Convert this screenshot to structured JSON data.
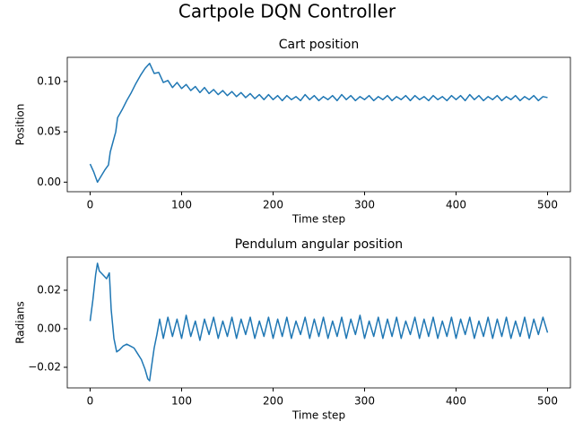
{
  "title": "Cartpole DQN Controller",
  "chart_data": [
    {
      "type": "line",
      "title": "Cart position",
      "xlabel": "Time step",
      "ylabel": "Position",
      "xlim": [
        -25,
        525
      ],
      "xticks": [
        0,
        100,
        200,
        300,
        400,
        500
      ],
      "ylim": [
        -0.0095,
        0.124
      ],
      "yticks": [
        {
          "value": 0,
          "label": "0.00"
        },
        {
          "value": 0.05,
          "label": "0.05"
        },
        {
          "value": 0.1,
          "label": "0.10"
        }
      ],
      "x": [
        0,
        4,
        8,
        12,
        16,
        20,
        22,
        25,
        28,
        30,
        35,
        40,
        45,
        50,
        55,
        60,
        65,
        70,
        75,
        80,
        85,
        90,
        95,
        100,
        105,
        110,
        115,
        120,
        125,
        130,
        135,
        140,
        145,
        150,
        155,
        160,
        165,
        170,
        175,
        180,
        185,
        190,
        195,
        200,
        205,
        210,
        215,
        220,
        225,
        230,
        235,
        240,
        245,
        250,
        255,
        260,
        265,
        270,
        275,
        280,
        285,
        290,
        295,
        300,
        305,
        310,
        315,
        320,
        325,
        330,
        335,
        340,
        345,
        350,
        355,
        360,
        365,
        370,
        375,
        380,
        385,
        390,
        395,
        400,
        405,
        410,
        415,
        420,
        425,
        430,
        435,
        440,
        445,
        450,
        455,
        460,
        465,
        470,
        475,
        480,
        485,
        490,
        495,
        500
      ],
      "series": [
        {
          "color": "#1f77b4",
          "values": [
            0.018,
            0.01,
            0.0,
            0.006,
            0.012,
            0.017,
            0.03,
            0.04,
            0.05,
            0.064,
            0.072,
            0.081,
            0.089,
            0.098,
            0.106,
            0.113,
            0.118,
            0.108,
            0.109,
            0.099,
            0.101,
            0.094,
            0.099,
            0.093,
            0.097,
            0.091,
            0.095,
            0.089,
            0.094,
            0.088,
            0.092,
            0.087,
            0.091,
            0.086,
            0.09,
            0.085,
            0.089,
            0.084,
            0.088,
            0.083,
            0.087,
            0.082,
            0.087,
            0.082,
            0.086,
            0.081,
            0.086,
            0.082,
            0.085,
            0.081,
            0.087,
            0.082,
            0.086,
            0.081,
            0.085,
            0.082,
            0.086,
            0.081,
            0.087,
            0.082,
            0.086,
            0.081,
            0.085,
            0.082,
            0.086,
            0.081,
            0.085,
            0.082,
            0.086,
            0.081,
            0.085,
            0.082,
            0.086,
            0.081,
            0.086,
            0.082,
            0.085,
            0.081,
            0.086,
            0.082,
            0.085,
            0.081,
            0.086,
            0.082,
            0.086,
            0.081,
            0.087,
            0.082,
            0.086,
            0.081,
            0.085,
            0.082,
            0.086,
            0.081,
            0.085,
            0.082,
            0.086,
            0.081,
            0.085,
            0.082,
            0.086,
            0.081,
            0.085,
            0.084
          ]
        }
      ]
    },
    {
      "type": "line",
      "title": "Pendulum angular position",
      "xlabel": "Time step",
      "ylabel": "Radians",
      "xlim": [
        -25,
        525
      ],
      "xticks": [
        0,
        100,
        200,
        300,
        400,
        500
      ],
      "ylim": [
        -0.0307,
        0.0372
      ],
      "yticks": [
        {
          "value": -0.02,
          "label": "−0.02"
        },
        {
          "value": 0,
          "label": "0.00"
        },
        {
          "value": 0.02,
          "label": "0.02"
        }
      ],
      "x": [
        0,
        3,
        6,
        8,
        10,
        14,
        18,
        21,
        23,
        26,
        29,
        32,
        36,
        40,
        44,
        48,
        52,
        56,
        60,
        63,
        65,
        67,
        70,
        73,
        76,
        80,
        85,
        90,
        95,
        100,
        105,
        110,
        115,
        120,
        125,
        130,
        135,
        140,
        145,
        150,
        155,
        160,
        165,
        170,
        175,
        180,
        185,
        190,
        195,
        200,
        205,
        210,
        215,
        220,
        225,
        230,
        235,
        240,
        245,
        250,
        255,
        260,
        265,
        270,
        275,
        280,
        285,
        290,
        295,
        300,
        305,
        310,
        315,
        320,
        325,
        330,
        335,
        340,
        345,
        350,
        355,
        360,
        365,
        370,
        375,
        380,
        385,
        390,
        395,
        400,
        405,
        410,
        415,
        420,
        425,
        430,
        435,
        440,
        445,
        450,
        455,
        460,
        465,
        470,
        475,
        480,
        485,
        490,
        495,
        500
      ],
      "series": [
        {
          "color": "#1f77b4",
          "values": [
            0.004,
            0.015,
            0.028,
            0.034,
            0.03,
            0.028,
            0.026,
            0.029,
            0.01,
            -0.005,
            -0.012,
            -0.011,
            -0.009,
            -0.008,
            -0.009,
            -0.01,
            -0.013,
            -0.016,
            -0.021,
            -0.026,
            -0.027,
            -0.02,
            -0.01,
            -0.003,
            0.005,
            -0.005,
            0.006,
            -0.004,
            0.005,
            -0.005,
            0.007,
            -0.004,
            0.004,
            -0.006,
            0.005,
            -0.003,
            0.006,
            -0.005,
            0.004,
            -0.004,
            0.006,
            -0.005,
            0.005,
            -0.003,
            0.006,
            -0.005,
            0.004,
            -0.004,
            0.006,
            -0.005,
            0.005,
            -0.004,
            0.006,
            -0.005,
            0.004,
            -0.003,
            0.006,
            -0.005,
            0.005,
            -0.004,
            0.006,
            -0.005,
            0.004,
            -0.004,
            0.006,
            -0.005,
            0.005,
            -0.003,
            0.007,
            -0.005,
            0.004,
            -0.004,
            0.006,
            -0.005,
            0.005,
            -0.004,
            0.006,
            -0.005,
            0.004,
            -0.003,
            0.006,
            -0.005,
            0.005,
            -0.004,
            0.006,
            -0.005,
            0.004,
            -0.004,
            0.006,
            -0.005,
            0.005,
            -0.003,
            0.006,
            -0.005,
            0.004,
            -0.004,
            0.006,
            -0.005,
            0.005,
            -0.004,
            0.006,
            -0.005,
            0.004,
            -0.004,
            0.006,
            -0.005,
            0.005,
            -0.003,
            0.006,
            -0.002
          ]
        }
      ]
    }
  ]
}
